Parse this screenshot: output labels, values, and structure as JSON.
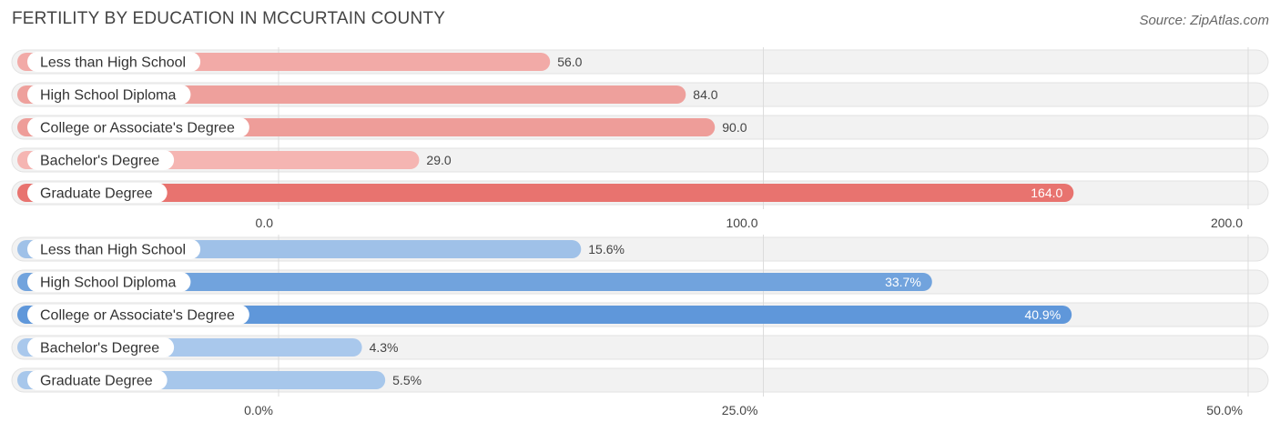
{
  "title": "FERTILITY BY EDUCATION IN MCCURTAIN COUNTY",
  "source": "Source: ZipAtlas.com",
  "chart_data": [
    {
      "type": "bar",
      "orientation": "horizontal",
      "categories": [
        "Less than High School",
        "High School Diploma",
        "College or Associate's Degree",
        "Bachelor's Degree",
        "Graduate Degree"
      ],
      "values": [
        56.0,
        84.0,
        90.0,
        29.0,
        164.0
      ],
      "value_labels": [
        "56.0",
        "84.0",
        "90.0",
        "29.0",
        "164.0"
      ],
      "xlim": [
        0,
        200
      ],
      "ticks": [
        0,
        100,
        200
      ],
      "tick_labels": [
        "0.0",
        "100.0",
        "200.0"
      ],
      "bar_colors": [
        "#f2aaa7",
        "#eea09c",
        "#ee9d99",
        "#f5b5b2",
        "#e8736f"
      ],
      "grid": true
    },
    {
      "type": "bar",
      "orientation": "horizontal",
      "categories": [
        "Less than High School",
        "High School Diploma",
        "College or Associate's Degree",
        "Bachelor's Degree",
        "Graduate Degree"
      ],
      "values": [
        15.6,
        33.7,
        40.9,
        4.3,
        5.5
      ],
      "value_labels": [
        "15.6%",
        "33.7%",
        "40.9%",
        "4.3%",
        "5.5%"
      ],
      "xlim": [
        0,
        50
      ],
      "ticks": [
        0,
        25,
        50
      ],
      "tick_labels": [
        "0.0%",
        "25.0%",
        "50.0%"
      ],
      "bar_colors": [
        "#9fc1e8",
        "#71a3dd",
        "#5f97da",
        "#a9c8ec",
        "#a7c7eb"
      ],
      "grid": true
    }
  ]
}
